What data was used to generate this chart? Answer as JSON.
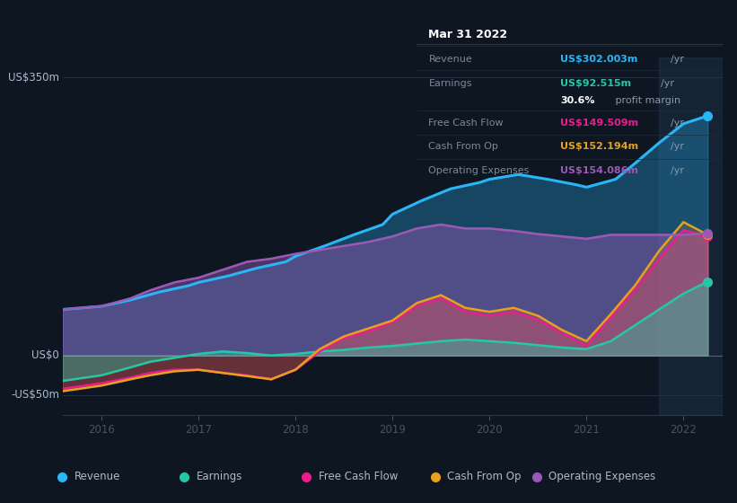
{
  "bg_color": "#0e1621",
  "plot_bg_color": "#0e1621",
  "title": "Mar 31 2022",
  "ylabel_top": "US$350m",
  "ylabel_zero": "US$0",
  "ylabel_bottom": "-US$50m",
  "ylim": [
    -75,
    375
  ],
  "xlim": [
    2015.6,
    2022.4
  ],
  "x_ticks": [
    2016,
    2017,
    2018,
    2019,
    2020,
    2021,
    2022
  ],
  "highlight_x_start": 2021.75,
  "highlight_x_end": 2022.4,
  "colors": {
    "revenue": "#29b6f6",
    "earnings": "#26c6a6",
    "free_cash_flow": "#e91e8c",
    "cash_from_op": "#e8a020",
    "operating_expenses": "#9b59b6"
  },
  "legend_labels": [
    "Revenue",
    "Earnings",
    "Free Cash Flow",
    "Cash From Op",
    "Operating Expenses"
  ],
  "legend_colors": [
    "#29b6f6",
    "#26c6a6",
    "#e91e8c",
    "#e8a020",
    "#9b59b6"
  ],
  "info_box": {
    "title": "Mar 31 2022",
    "rows": [
      {
        "label": "Revenue",
        "value": "US$302.003m",
        "unit": "/yr",
        "value_color": "#29b6f6"
      },
      {
        "label": "Earnings",
        "value": "US$92.515m",
        "unit": "/yr",
        "value_color": "#26c6a6"
      },
      {
        "label": "",
        "value": "30.6%",
        "unit": " profit margin",
        "value_color": "#ffffff"
      },
      {
        "label": "Free Cash Flow",
        "value": "US$149.509m",
        "unit": "/yr",
        "value_color": "#e91e8c"
      },
      {
        "label": "Cash From Op",
        "value": "US$152.194m",
        "unit": "/yr",
        "value_color": "#e8a020"
      },
      {
        "label": "Operating Expenses",
        "value": "US$154.086m",
        "unit": "/yr",
        "value_color": "#9b59b6"
      }
    ]
  },
  "revenue": {
    "x": [
      2015.6,
      2016.0,
      2016.3,
      2016.6,
      2016.9,
      2017.0,
      2017.3,
      2017.6,
      2017.9,
      2018.0,
      2018.3,
      2018.6,
      2018.9,
      2019.0,
      2019.3,
      2019.6,
      2019.9,
      2020.0,
      2020.3,
      2020.6,
      2020.9,
      2021.0,
      2021.3,
      2021.5,
      2021.75,
      2022.0,
      2022.25
    ],
    "y": [
      58,
      62,
      70,
      80,
      88,
      92,
      100,
      110,
      118,
      125,
      138,
      152,
      165,
      178,
      195,
      210,
      218,
      222,
      228,
      222,
      215,
      212,
      222,
      242,
      268,
      292,
      302
    ]
  },
  "earnings": {
    "x": [
      2015.6,
      2016.0,
      2016.3,
      2016.5,
      2016.75,
      2017.0,
      2017.25,
      2017.5,
      2017.75,
      2018.0,
      2018.25,
      2018.5,
      2018.75,
      2019.0,
      2019.25,
      2019.5,
      2019.75,
      2020.0,
      2020.25,
      2020.5,
      2020.75,
      2021.0,
      2021.25,
      2021.5,
      2021.75,
      2022.0,
      2022.25
    ],
    "y": [
      -32,
      -25,
      -15,
      -8,
      -3,
      2,
      5,
      3,
      0,
      2,
      5,
      7,
      10,
      12,
      15,
      18,
      20,
      18,
      16,
      13,
      10,
      8,
      18,
      38,
      58,
      78,
      93
    ]
  },
  "free_cash_flow": {
    "x": [
      2015.6,
      2016.0,
      2016.3,
      2016.5,
      2016.75,
      2017.0,
      2017.25,
      2017.5,
      2017.75,
      2018.0,
      2018.25,
      2018.5,
      2018.75,
      2019.0,
      2019.25,
      2019.5,
      2019.75,
      2020.0,
      2020.25,
      2020.5,
      2020.75,
      2021.0,
      2021.25,
      2021.5,
      2021.75,
      2022.0,
      2022.25
    ],
    "y": [
      -42,
      -35,
      -28,
      -22,
      -18,
      -18,
      -22,
      -25,
      -30,
      -18,
      5,
      22,
      30,
      42,
      62,
      72,
      55,
      50,
      55,
      45,
      28,
      12,
      48,
      82,
      122,
      158,
      150
    ]
  },
  "cash_from_op": {
    "x": [
      2015.6,
      2016.0,
      2016.3,
      2016.5,
      2016.75,
      2017.0,
      2017.25,
      2017.5,
      2017.75,
      2018.0,
      2018.25,
      2018.5,
      2018.75,
      2019.0,
      2019.25,
      2019.5,
      2019.75,
      2020.0,
      2020.25,
      2020.5,
      2020.75,
      2021.0,
      2021.25,
      2021.5,
      2021.75,
      2022.0,
      2022.25
    ],
    "y": [
      -45,
      -38,
      -30,
      -25,
      -20,
      -18,
      -22,
      -26,
      -30,
      -18,
      8,
      24,
      34,
      44,
      66,
      76,
      60,
      55,
      60,
      50,
      32,
      18,
      52,
      88,
      132,
      168,
      152
    ]
  },
  "operating_expenses": {
    "x": [
      2015.6,
      2016.0,
      2016.3,
      2016.5,
      2016.75,
      2017.0,
      2017.25,
      2017.5,
      2017.75,
      2018.0,
      2018.25,
      2018.5,
      2018.75,
      2019.0,
      2019.25,
      2019.5,
      2019.75,
      2020.0,
      2020.25,
      2020.5,
      2020.75,
      2021.0,
      2021.25,
      2021.5,
      2021.75,
      2022.0,
      2022.25
    ],
    "y": [
      58,
      62,
      72,
      82,
      92,
      98,
      108,
      118,
      122,
      128,
      133,
      138,
      143,
      150,
      160,
      165,
      160,
      160,
      157,
      153,
      150,
      147,
      152,
      152,
      152,
      152,
      154
    ]
  }
}
